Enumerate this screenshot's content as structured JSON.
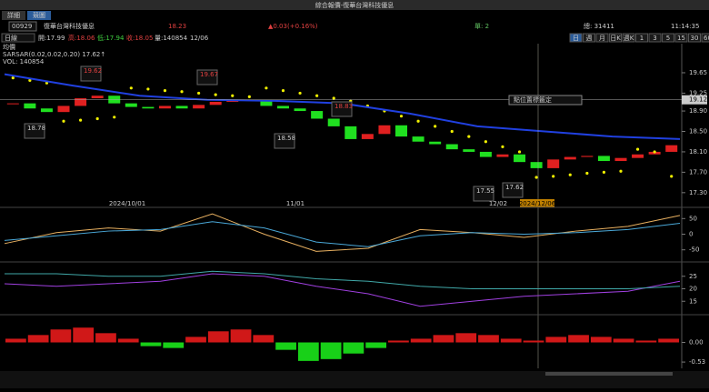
{
  "window_title": "綜合報價-復華台灣科技優息",
  "tabs": [
    "詳細",
    "競圖"
  ],
  "quote": {
    "code": "00929",
    "name": "復華台灣科技優息",
    "price": "18.23",
    "change": "▲0.03(+0.16%)",
    "single": "單: 2",
    "total": "總: 31411",
    "time": "11:14:35"
  },
  "periods": [
    "日",
    "週",
    "月",
    "日K",
    "週K",
    "1",
    "3",
    "5",
    "15",
    "30",
    "60"
  ],
  "toolbar": {
    "interval": "日線",
    "open": "開:17.99",
    "high": "高:18.06",
    "low": "低:17.94",
    "close": "收:18.05",
    "volume": "量:140854",
    "date": "12/06"
  },
  "legend": [
    "均價",
    "SARSAR(0.02,0.02,0.20) 17.62↑",
    "VOL: 140854"
  ],
  "price_chart": {
    "ylim": [
      17.19,
      20.22
    ],
    "yticks": [
      19.65,
      19.25,
      {
        "value": 18.9,
        "label": "18.90"
      },
      {
        "value": 18.5,
        "label": "18.50"
      },
      {
        "value": 18.1,
        "label": "18.10"
      },
      {
        "value": 17.7,
        "label": "17.70"
      },
      {
        "value": 17.3,
        "label": "17.30"
      }
    ],
    "crosshair_price": {
      "value": 19.12,
      "label": "19.12"
    },
    "close": [
      19.05,
      18.95,
      18.88,
      19.0,
      19.15,
      19.2,
      19.05,
      18.98,
      18.95,
      19.0,
      18.95,
      19.02,
      19.08,
      19.1,
      19.12,
      19.0,
      18.95,
      18.9,
      18.75,
      18.6,
      18.35,
      18.45,
      18.62,
      18.4,
      18.3,
      18.25,
      18.15,
      18.1,
      18.0,
      18.05,
      17.9,
      17.78,
      17.95,
      18.0,
      18.02,
      17.92,
      17.98,
      18.05,
      18.1,
      18.23
    ],
    "sar": [
      19.55,
      19.5,
      19.45,
      18.7,
      18.72,
      18.75,
      18.78,
      19.35,
      19.33,
      19.3,
      19.28,
      19.25,
      19.22,
      19.2,
      19.18,
      19.35,
      19.3,
      19.25,
      19.2,
      19.15,
      19.1,
      19.0,
      18.9,
      18.8,
      18.7,
      18.6,
      18.5,
      18.4,
      18.3,
      18.2,
      18.1,
      17.6,
      17.62,
      17.65,
      17.68,
      17.7,
      17.72,
      18.15,
      18.1,
      17.62
    ],
    "ma": [
      19.62,
      19.4,
      19.2,
      19.12,
      19.1,
      19.05,
      18.85,
      18.6,
      18.5,
      18.4,
      18.35
    ],
    "annotations": [
      "19.62",
      "19.67",
      "18.78",
      "18.58",
      "18.83",
      "17.55",
      "17.62"
    ],
    "date_labels": [
      "2024/10/01",
      "11/01",
      "12/02"
    ],
    "crosshair_date": "2024/12/06",
    "tooltip": "點位置標籤定"
  },
  "panels": [
    {
      "ylim": [
        -80,
        80
      ],
      "yticks": [
        50,
        0,
        -50
      ],
      "lines": [
        {
          "color": "#e8b060",
          "values": [
            -30,
            5,
            20,
            10,
            65,
            0,
            -55,
            -45,
            15,
            5,
            -10,
            10,
            25,
            60
          ]
        },
        {
          "color": "#4aa8d8",
          "values": [
            -20,
            -5,
            10,
            15,
            40,
            20,
            -25,
            -40,
            -5,
            5,
            0,
            5,
            15,
            35
          ]
        }
      ]
    },
    {
      "ylim": [
        10,
        30
      ],
      "yticks": [
        25,
        20,
        15
      ],
      "lines": [
        {
          "color": "#a040e0",
          "values": [
            22,
            21,
            22,
            23,
            26,
            25,
            21,
            18,
            13,
            15,
            17,
            18,
            19,
            23
          ]
        },
        {
          "color": "#40a8a8",
          "values": [
            26,
            26,
            25,
            25,
            27,
            26,
            24,
            23,
            21,
            20,
            20,
            20,
            20,
            21
          ]
        }
      ]
    },
    {
      "ylim": [
        -0.7,
        0.7
      ],
      "yticks": [
        {
          "value": 0,
          "label": "0.00"
        },
        -0.53
      ],
      "hist": [
        0.1,
        0.2,
        0.35,
        0.4,
        0.25,
        0.1,
        -0.1,
        -0.15,
        0.15,
        0.3,
        0.35,
        0.2,
        -0.2,
        -0.5,
        -0.45,
        -0.3,
        -0.15,
        0.05,
        0.1,
        0.2,
        0.25,
        0.2,
        0.1,
        0.05,
        0.15,
        0.2,
        0.15,
        0.1,
        0.05,
        0.1
      ]
    }
  ]
}
